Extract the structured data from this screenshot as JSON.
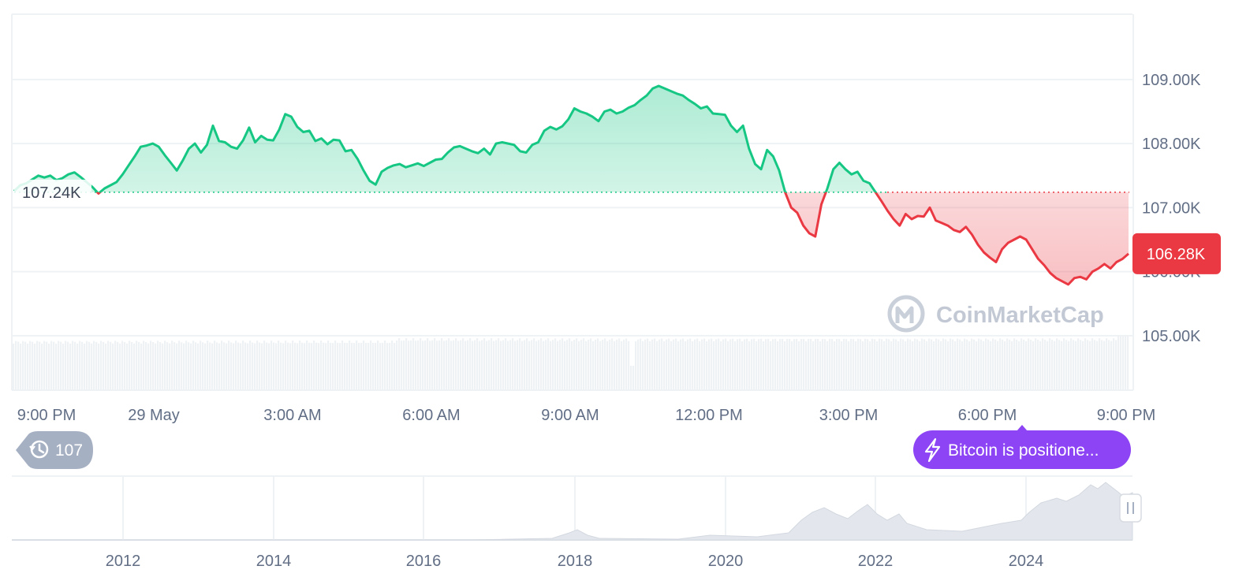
{
  "chart_data": {
    "type": "area",
    "title": "",
    "xlabel": "",
    "ylabel": "",
    "x_ticks": [
      "9:00 PM",
      "29 May",
      "3:00 AM",
      "6:00 AM",
      "9:00 AM",
      "12:00 PM",
      "3:00 PM",
      "6:00 PM",
      "9:00 PM"
    ],
    "y_ticks": [
      "105.00K",
      "106.00K",
      "107.00K",
      "108.00K",
      "109.00K"
    ],
    "ylim": [
      104.15,
      110.02
    ],
    "reference_price": 107.24,
    "reference_label": "107.24K",
    "current_price": 106.28,
    "current_label": "106.28K",
    "colors": {
      "up": "#16c784",
      "down": "#ea3943"
    },
    "series": [
      {
        "values": [
          107.26,
          107.35,
          107.38,
          107.44,
          107.5,
          107.47,
          107.5,
          107.43,
          107.46,
          107.52,
          107.55,
          107.48,
          107.4,
          107.32,
          107.22,
          107.3,
          107.35,
          107.4,
          107.52,
          107.66,
          107.8,
          107.95,
          107.97,
          108.0,
          107.95,
          107.82,
          107.7,
          107.58,
          107.74,
          107.92,
          108.0,
          107.86,
          107.98,
          108.28,
          108.04,
          108.02,
          107.95,
          107.92,
          108.05,
          108.25,
          108.02,
          108.12,
          108.06,
          108.05,
          108.22,
          108.46,
          108.42,
          108.26,
          108.18,
          108.2,
          108.04,
          108.08,
          107.99,
          108.06,
          108.05,
          107.88,
          107.9,
          107.76,
          107.58,
          107.42,
          107.36,
          107.56,
          107.62,
          107.66,
          107.68,
          107.63,
          107.66,
          107.69,
          107.65,
          107.7,
          107.75,
          107.76,
          107.86,
          107.94,
          107.96,
          107.92,
          107.88,
          107.85,
          107.92,
          107.83,
          108.0,
          108.02,
          108.0,
          107.98,
          107.88,
          107.86,
          107.98,
          108.02,
          108.2,
          108.26,
          108.22,
          108.27,
          108.38,
          108.55,
          108.5,
          108.47,
          108.42,
          108.35,
          108.5,
          108.53,
          108.47,
          108.5,
          108.56,
          108.6,
          108.68,
          108.75,
          108.86,
          108.9,
          108.86,
          108.82,
          108.78,
          108.75,
          108.68,
          108.62,
          108.55,
          108.58,
          108.47,
          108.46,
          108.45,
          108.28,
          108.18,
          108.28,
          107.92,
          107.68,
          107.6,
          107.9,
          107.8,
          107.58,
          107.24,
          107.0,
          106.92,
          106.72,
          106.6,
          106.55,
          107.05,
          107.3,
          107.6,
          107.7,
          107.6,
          107.52,
          107.56,
          107.42,
          107.38,
          107.24,
          107.1,
          106.95,
          106.82,
          106.72,
          106.9,
          106.82,
          106.87,
          106.86,
          107.0,
          106.8,
          106.76,
          106.72,
          106.65,
          106.62,
          106.7,
          106.58,
          106.42,
          106.3,
          106.22,
          106.15,
          106.35,
          106.45,
          106.5,
          106.55,
          106.5,
          106.35,
          106.2,
          106.1,
          105.98,
          105.9,
          105.85,
          105.8,
          105.9,
          105.92,
          105.88,
          106.0,
          106.05,
          106.12,
          106.05,
          106.15,
          106.2,
          106.28
        ],
        "color": "#16c784"
      }
    ],
    "navigator": {
      "x_ticks": [
        "2012",
        "2014",
        "2016",
        "2018",
        "2020",
        "2022",
        "2024"
      ]
    }
  },
  "badges": {
    "history_count": "107",
    "news_pill": "Bitcoin is positione..."
  },
  "watermark": "CoinMarketCap",
  "icons": [
    "clock-history-icon",
    "lightning-icon",
    "coinmarketcap-logo-icon",
    "navigator-handle-icon"
  ]
}
